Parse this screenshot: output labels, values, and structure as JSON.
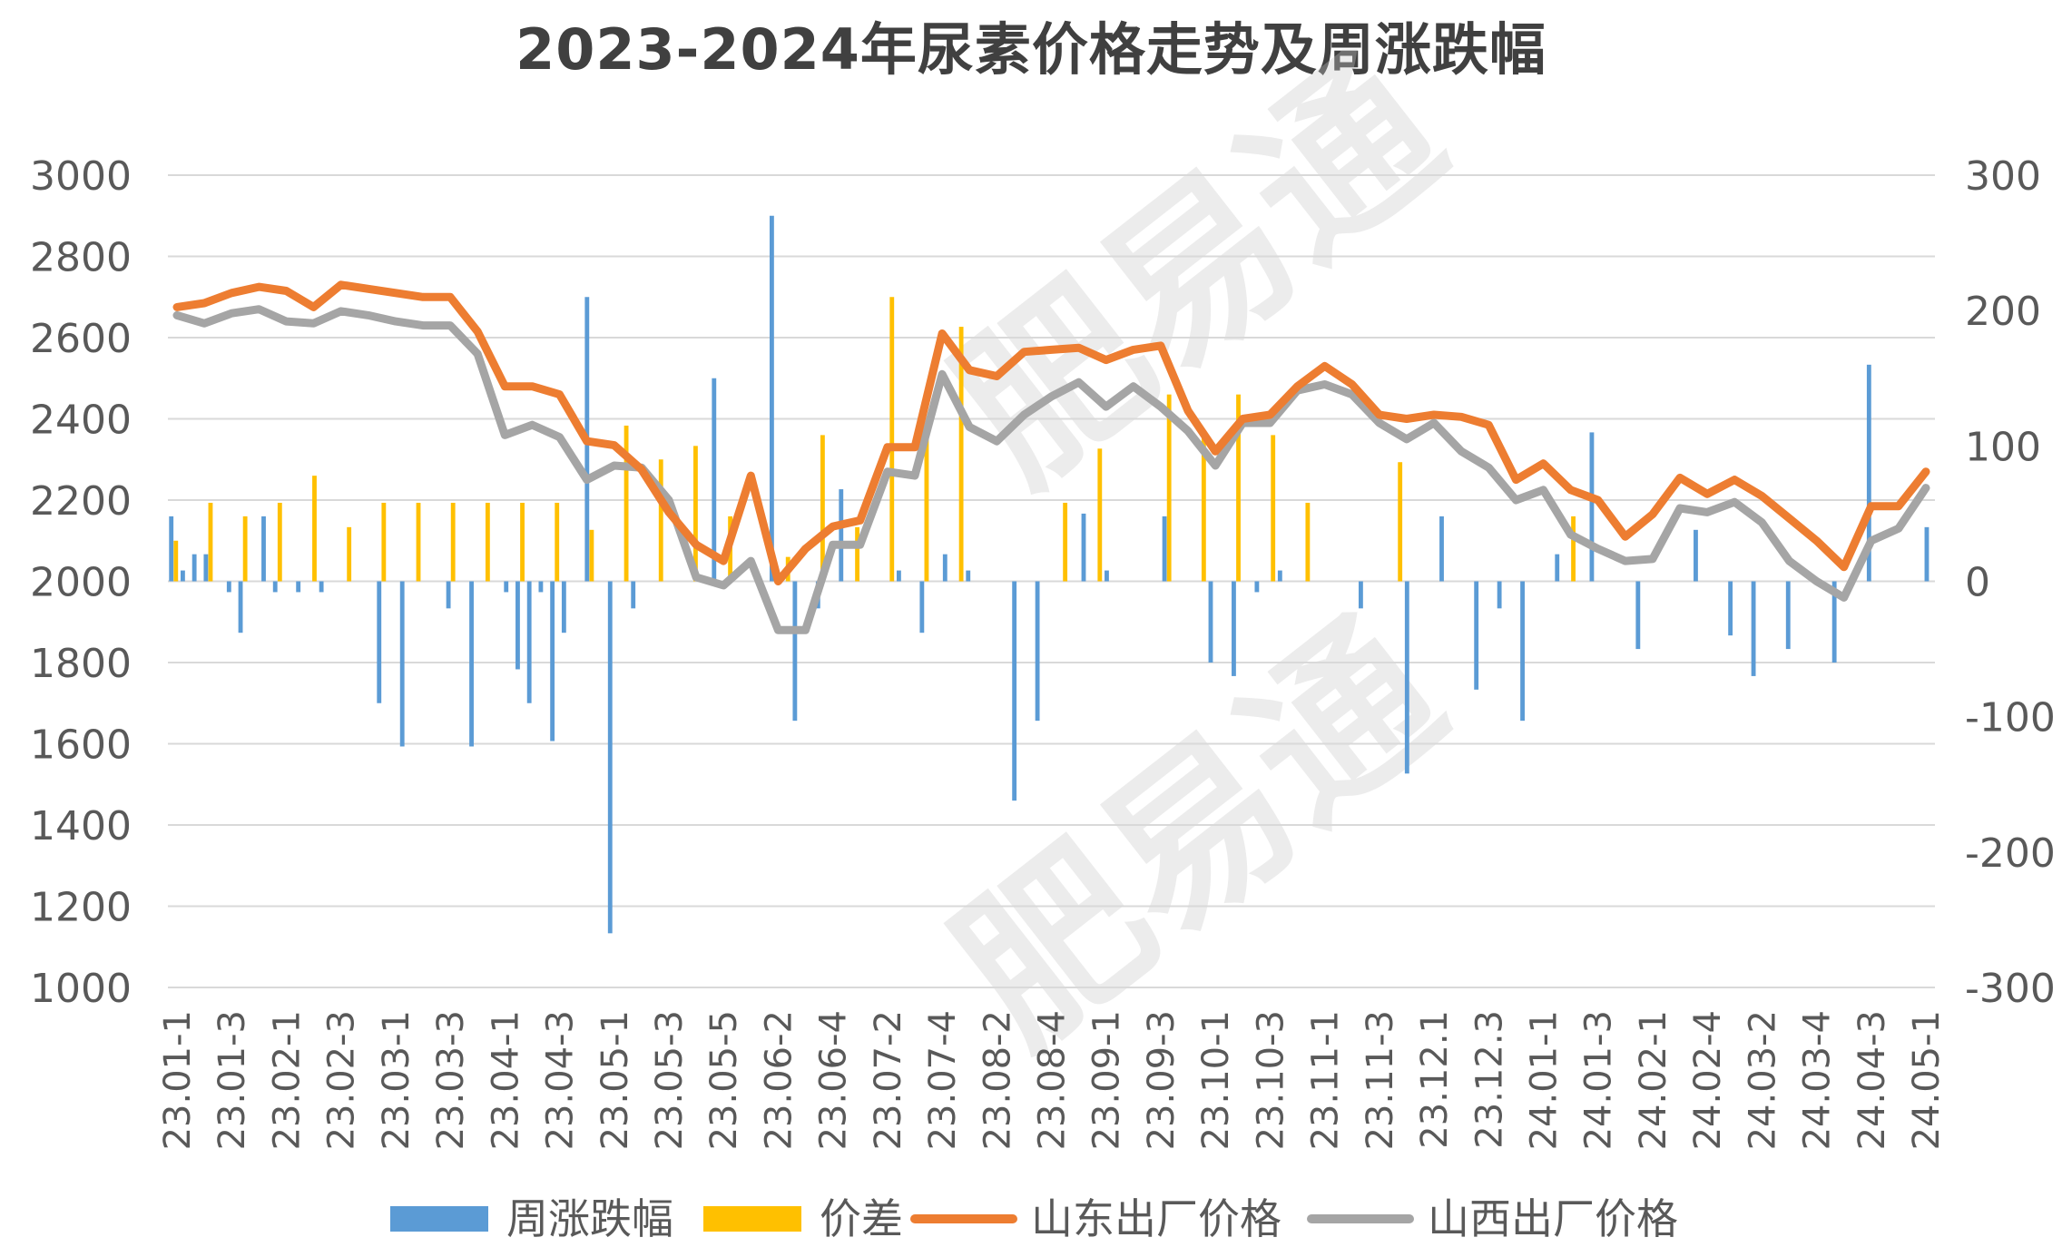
{
  "chart_data": {
    "type": "bar+line",
    "title": "2023-2024年尿素价格走势及周涨跌幅",
    "legend": [
      "周涨跌幅",
      "价差",
      "山东出厂价格",
      "山西出厂价格"
    ],
    "legend_position": "bottom",
    "y_left": {
      "min": 1000,
      "max": 3000,
      "step": 200
    },
    "y_right": {
      "min": -300,
      "max": 300,
      "step": 100
    },
    "grid": true,
    "x_tick_labels": [
      "23.01-1",
      "23.01-3",
      "23.02-1",
      "23.02-3",
      "23.03-1",
      "23.03-3",
      "23.04-1",
      "23.04-3",
      "23.05-1",
      "23.05-3",
      "23.05-5",
      "23.06-2",
      "23.06-4",
      "23.07-2",
      "23.07-4",
      "23.08-2",
      "23.08-4",
      "23.09-1",
      "23.09-3",
      "23.10-1",
      "23.10-3",
      "23.11-1",
      "23.11-3",
      "23.12.1",
      "23.12.3",
      "24.01-1",
      "24.01-3",
      "24.02-1",
      "24.02-4",
      "24.03-2",
      "24.03-4",
      "24.04-3",
      "24.05-1"
    ],
    "series": [
      {
        "name": "周涨跌幅",
        "axis": "right",
        "type": "bar",
        "color": "#5B9BD5",
        "values": [
          48,
          8,
          20,
          20,
          0,
          -8,
          -38,
          0,
          48,
          -8,
          0,
          -8,
          0,
          -8,
          0,
          0,
          0,
          0,
          -90,
          0,
          -122,
          0,
          0,
          0,
          -20,
          0,
          -122,
          0,
          0,
          -8,
          -65,
          -90,
          -8,
          -118,
          -38,
          0,
          210,
          0,
          -260,
          0,
          -20,
          0,
          0,
          0,
          0,
          0,
          0,
          150,
          0,
          0,
          0,
          0,
          270,
          0,
          -103,
          0,
          -20,
          0,
          68,
          0,
          0,
          0,
          0,
          8,
          0,
          -38,
          0,
          20,
          0,
          8,
          0,
          0,
          0,
          -162,
          0,
          -103,
          0,
          0,
          0,
          50,
          0,
          8,
          0,
          0,
          0,
          0,
          48,
          0,
          0,
          0,
          -60,
          0,
          -70,
          0,
          -8,
          0,
          8,
          0,
          0,
          0,
          0,
          0,
          0,
          -20,
          0,
          0,
          0,
          -142,
          0,
          0,
          48,
          0,
          0,
          -80,
          0,
          -20,
          0,
          -103,
          0,
          0,
          20,
          0,
          0,
          110,
          0,
          0,
          0,
          -50,
          0,
          0,
          0,
          0,
          38,
          0,
          0,
          -40,
          0,
          -70,
          0,
          0,
          -50,
          0,
          0,
          0,
          -60,
          0,
          0,
          160,
          0,
          0,
          0,
          0,
          40
        ]
      },
      {
        "name": "价差",
        "axis": "right",
        "type": "bar",
        "color": "#FFC000",
        "values": [
          30,
          0,
          0,
          58,
          0,
          0,
          48,
          0,
          0,
          58,
          0,
          0,
          78,
          0,
          0,
          40,
          0,
          0,
          58,
          0,
          0,
          58,
          0,
          0,
          58,
          0,
          0,
          58,
          0,
          0,
          58,
          0,
          0,
          58,
          0,
          0,
          38,
          0,
          0,
          115,
          0,
          0,
          90,
          0,
          0,
          100,
          0,
          0,
          48,
          0,
          0,
          0,
          0,
          18,
          0,
          0,
          108,
          0,
          0,
          40,
          0,
          0,
          210,
          0,
          0,
          108,
          0,
          0,
          188,
          0,
          0,
          0,
          0,
          0,
          0,
          0,
          0,
          58,
          0,
          0,
          98,
          0,
          0,
          0,
          0,
          0,
          138,
          0,
          0,
          108,
          0,
          0,
          138,
          0,
          0,
          108,
          0,
          0,
          58,
          0,
          0,
          0,
          0,
          0,
          0,
          0,
          88,
          0,
          0,
          0,
          0,
          0,
          0,
          0,
          0,
          0,
          0,
          0,
          0,
          0,
          0,
          48,
          0,
          0,
          0,
          0,
          0,
          0,
          0,
          0,
          0,
          0,
          0,
          0,
          0,
          0,
          0,
          0,
          0,
          0,
          0,
          0,
          0,
          0,
          0,
          0,
          0,
          0,
          0,
          0,
          0,
          0,
          0,
          0,
          0,
          0,
          0,
          0,
          0
        ]
      },
      {
        "name": "山东出厂价格",
        "axis": "left",
        "type": "line",
        "color": "#ED7D31",
        "values": [
          2675,
          2685,
          2710,
          2725,
          2715,
          2675,
          2730,
          2720,
          2710,
          2700,
          2700,
          2615,
          2480,
          2480,
          2460,
          2345,
          2335,
          2275,
          2170,
          2090,
          2050,
          2260,
          2000,
          2080,
          2135,
          2150,
          2330,
          2330,
          2610,
          2520,
          2505,
          2565,
          2570,
          2575,
          2545,
          2570,
          2580,
          2420,
          2320,
          2400,
          2410,
          2480,
          2530,
          2485,
          2410,
          2400,
          2410,
          2405,
          2385,
          2250,
          2290,
          2225,
          2200,
          2110,
          2165,
          2255,
          2215,
          2250,
          2210,
          2155,
          2100,
          2035,
          2185,
          2185,
          2270
        ]
      },
      {
        "name": "山西出厂价格",
        "axis": "left",
        "type": "line",
        "color": "#A5A5A5",
        "values": [
          2655,
          2635,
          2660,
          2670,
          2640,
          2635,
          2665,
          2655,
          2640,
          2630,
          2630,
          2560,
          2360,
          2385,
          2355,
          2250,
          2285,
          2280,
          2200,
          2010,
          1990,
          2050,
          1880,
          1880,
          2090,
          2090,
          2270,
          2260,
          2510,
          2380,
          2345,
          2410,
          2455,
          2490,
          2430,
          2480,
          2430,
          2370,
          2285,
          2390,
          2390,
          2470,
          2485,
          2460,
          2390,
          2350,
          2390,
          2320,
          2280,
          2200,
          2225,
          2115,
          2080,
          2050,
          2055,
          2180,
          2170,
          2195,
          2145,
          2050,
          2000,
          1960,
          2100,
          2130,
          2230
        ]
      }
    ]
  }
}
